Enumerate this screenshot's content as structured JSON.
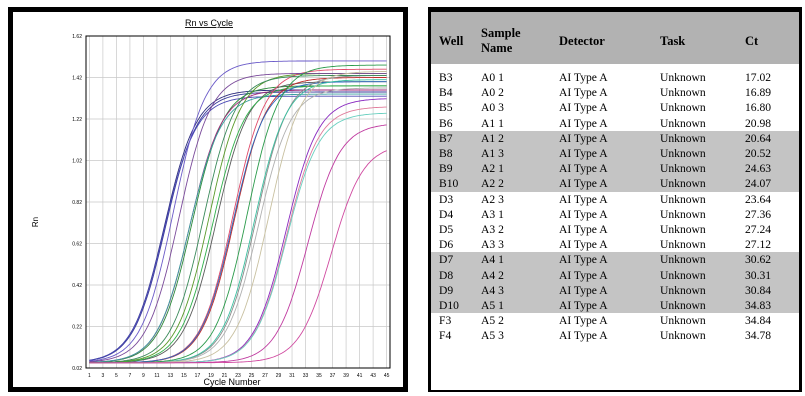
{
  "chart_data": {
    "type": "line",
    "title": "Rn vs Cycle",
    "xlabel": "Cycle Number",
    "ylabel": "Rn",
    "xlim": [
      0.5,
      45.5
    ],
    "ylim": [
      0.02,
      1.62
    ],
    "yticks": [
      "0.02",
      "0.22",
      "0.42",
      "0.62",
      "0.82",
      "1.02",
      "1.22",
      "1.42",
      "1.62"
    ],
    "xticks": [
      "1",
      "3",
      "5",
      "7",
      "9",
      "11",
      "13",
      "15",
      "17",
      "19",
      "21",
      "23",
      "25",
      "27",
      "29",
      "31",
      "33",
      "35",
      "37",
      "39",
      "41",
      "43",
      "45"
    ],
    "grid": true,
    "legend": "none",
    "baseline": 0.045,
    "series": [
      {
        "ct": 17.02,
        "plateau": 1.35,
        "color": "#3a3a9a"
      },
      {
        "ct": 16.89,
        "plateau": 1.36,
        "color": "#2f2f7f"
      },
      {
        "ct": 16.8,
        "plateau": 1.33,
        "color": "#4a4ab5"
      },
      {
        "ct": 20.98,
        "plateau": 1.38,
        "color": "#2a8a3a"
      },
      {
        "ct": 20.64,
        "plateau": 1.36,
        "color": "#a22a7a"
      },
      {
        "ct": 20.52,
        "plateau": 1.34,
        "color": "#3aa0a0"
      },
      {
        "ct": 24.63,
        "plateau": 1.4,
        "color": "#5a5a5a"
      },
      {
        "ct": 24.07,
        "plateau": 1.38,
        "color": "#2fb04a"
      },
      {
        "ct": 23.64,
        "plateau": 1.44,
        "color": "#5a9a2a"
      },
      {
        "ct": 27.36,
        "plateau": 1.42,
        "color": "#c02a2a"
      },
      {
        "ct": 27.24,
        "plateau": 1.46,
        "color": "#e04a6a"
      },
      {
        "ct": 27.12,
        "plateau": 1.4,
        "color": "#2a6ac0"
      },
      {
        "ct": 30.62,
        "plateau": 1.43,
        "color": "#8a8a8a"
      },
      {
        "ct": 30.31,
        "plateau": 1.41,
        "color": "#3ac0a0"
      },
      {
        "ct": 30.84,
        "plateau": 1.37,
        "color": "#b0b0b0"
      },
      {
        "ct": 34.83,
        "plateau": 1.32,
        "color": "#8a2ac0"
      },
      {
        "ct": 34.84,
        "plateau": 1.28,
        "color": "#e07a9a"
      },
      {
        "ct": 34.78,
        "plateau": 1.25,
        "color": "#6ad0c0"
      },
      {
        "ct": 18.5,
        "plateau": 1.5,
        "color": "#6a5ac8"
      },
      {
        "ct": 19.2,
        "plateau": 1.44,
        "color": "#7a4a9a"
      },
      {
        "ct": 22.8,
        "plateau": 1.43,
        "color": "#3a8a5a"
      },
      {
        "ct": 29.4,
        "plateau": 1.48,
        "color": "#2a9a4a"
      },
      {
        "ct": 32.5,
        "plateau": 1.45,
        "color": "#c8c0a0"
      },
      {
        "ct": 37.8,
        "plateau": 1.2,
        "color": "#c03aa0"
      },
      {
        "ct": 41.0,
        "plateau": 1.1,
        "color": "#d04aa0"
      }
    ]
  },
  "table": {
    "headers": {
      "well": "Well",
      "sample": "Sample Name",
      "detector": "Detector",
      "task": "Task",
      "ct": "Ct"
    },
    "rows": [
      {
        "well": "B3",
        "sample": "A0 1",
        "detector": "AI Type A",
        "task": "Unknown",
        "ct": "17.02",
        "shaded": false
      },
      {
        "well": "B4",
        "sample": "A0 2",
        "detector": "AI Type A",
        "task": "Unknown",
        "ct": "16.89",
        "shaded": false
      },
      {
        "well": "B5",
        "sample": "A0 3",
        "detector": "AI Type A",
        "task": "Unknown",
        "ct": "16.80",
        "shaded": false
      },
      {
        "well": "B6",
        "sample": "A1 1",
        "detector": "AI Type A",
        "task": "Unknown",
        "ct": "20.98",
        "shaded": false
      },
      {
        "well": "B7",
        "sample": "A1 2",
        "detector": "AI Type A",
        "task": "Unknown",
        "ct": "20.64",
        "shaded": true
      },
      {
        "well": "B8",
        "sample": "A1 3",
        "detector": "AI Type A",
        "task": "Unknown",
        "ct": "20.52",
        "shaded": true
      },
      {
        "well": "B9",
        "sample": "A2 1",
        "detector": "AI Type A",
        "task": "Unknown",
        "ct": "24.63",
        "shaded": true
      },
      {
        "well": "B10",
        "sample": "A2 2",
        "detector": "AI Type A",
        "task": "Unknown",
        "ct": "24.07",
        "shaded": true
      },
      {
        "well": "D3",
        "sample": "A2 3",
        "detector": "AI Type A",
        "task": "Unknown",
        "ct": "23.64",
        "shaded": false
      },
      {
        "well": "D4",
        "sample": "A3 1",
        "detector": "AI Type A",
        "task": "Unknown",
        "ct": "27.36",
        "shaded": false
      },
      {
        "well": "D5",
        "sample": "A3 2",
        "detector": "AI Type A",
        "task": "Unknown",
        "ct": "27.24",
        "shaded": false
      },
      {
        "well": "D6",
        "sample": "A3 3",
        "detector": "AI Type A",
        "task": "Unknown",
        "ct": "27.12",
        "shaded": false
      },
      {
        "well": "D7",
        "sample": "A4 1",
        "detector": "AI Type A",
        "task": "Unknown",
        "ct": "30.62",
        "shaded": true
      },
      {
        "well": "D8",
        "sample": "A4 2",
        "detector": "AI Type A",
        "task": "Unknown",
        "ct": "30.31",
        "shaded": true
      },
      {
        "well": "D9",
        "sample": "A4 3",
        "detector": "AI Type A",
        "task": "Unknown",
        "ct": "30.84",
        "shaded": true
      },
      {
        "well": "D10",
        "sample": "A5 1",
        "detector": "AI Type A",
        "task": "Unknown",
        "ct": "34.83",
        "shaded": true
      },
      {
        "well": "F3",
        "sample": "A5 2",
        "detector": "AI Type A",
        "task": "Unknown",
        "ct": "34.84",
        "shaded": false
      },
      {
        "well": "F4",
        "sample": "A5 3",
        "detector": "AI Type A",
        "task": "Unknown",
        "ct": "34.78",
        "shaded": false
      }
    ]
  }
}
